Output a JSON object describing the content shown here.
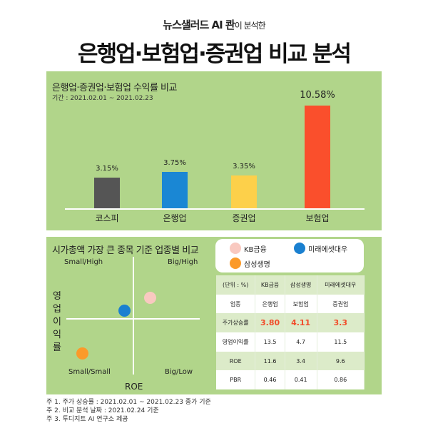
{
  "header": {
    "subtitle_main": "뉴스샐러드 AI 콴",
    "subtitle_rest": "이 분석한",
    "title": "은행업·보험업·증권업 비교 분석"
  },
  "colors": {
    "panel": "#b1d58a",
    "kospi": "#555555",
    "bank": "#1a87d4",
    "securities": "#fdd04a",
    "insurance": "#fa4f2c",
    "kb": "#f9c9c0",
    "mirae": "#1a80d0",
    "samsung": "#fb9a2a",
    "highlight": "#f14c2a"
  },
  "chart_data": {
    "type": "bar",
    "title": "은행업·증권업·보험업 수익률 비교",
    "subtitle": "기간 : 2021.02.01 ~ 2021.02.23",
    "categories": [
      "코스피",
      "은행업",
      "증권업",
      "보험업"
    ],
    "values": [
      3.15,
      3.75,
      3.35,
      10.58
    ],
    "data_labels": [
      "3.15%",
      "3.75%",
      "3.35%",
      "10.58%"
    ],
    "ylim": [
      0,
      10.58
    ],
    "grid": false
  },
  "scatter": {
    "title": "시가총액 가장 큰 종목 기준 업종별 비교",
    "xlabel": "ROE",
    "ylabel": "영업이익률",
    "quadrants": [
      "Small/High",
      "Big/High",
      "Small/Small",
      "Big/Low"
    ]
  },
  "legend": [
    {
      "label": "KB금융"
    },
    {
      "label": "미래에셋대우"
    },
    {
      "label": "삼성생명"
    }
  ],
  "table": {
    "header": [
      "(단위 : %)",
      "KB금융",
      "삼성생명",
      "미래에셋대우"
    ],
    "rows": [
      [
        "업종",
        "은행업",
        "보험업",
        "증권업"
      ],
      [
        "주가상승률",
        "3.80",
        "4.11",
        "3.3"
      ],
      [
        "영업이익률",
        "13.5",
        "4.7",
        "11.5"
      ],
      [
        "ROE",
        "11.6",
        "3.4",
        "9.6"
      ],
      [
        "PBR",
        "0.46",
        "0.41",
        "0.86"
      ]
    ]
  },
  "notes": [
    "주 1. 주가 상승률 : 2021.02.01 ~ 2021.02.23 종가 기준",
    "주 2. 비교 분석 날짜 : 2021.02.24 기준",
    "주 3. 투디지트 AI 연구소 제공"
  ]
}
